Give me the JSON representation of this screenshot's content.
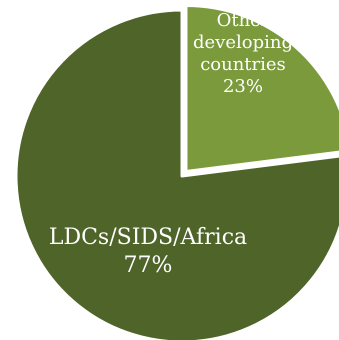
{
  "chart_data": {
    "type": "pie",
    "title": "",
    "start_angle_deg": 0,
    "direction": "clockwise",
    "slices": [
      {
        "label_lines": [
          "Other",
          "developing",
          "countries"
        ],
        "percent_label": "23%",
        "value": 23,
        "color": "#7a9a3c"
      },
      {
        "label_lines": [
          "LDCs/SIDS/Africa"
        ],
        "percent_label": "77%",
        "value": 77,
        "color": "#4e6428"
      }
    ],
    "separator_color": "#ffffff",
    "label_color": "#ffffff"
  }
}
